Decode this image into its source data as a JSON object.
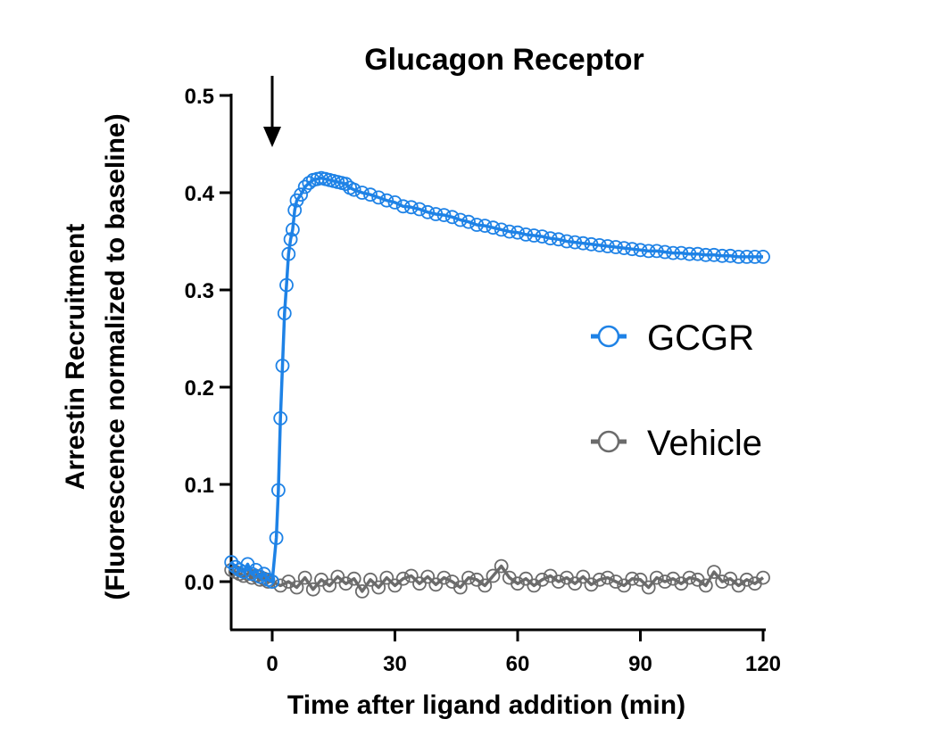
{
  "chart_data": {
    "type": "scatter",
    "title": "Glucagon Receptor",
    "xlabel": "Time after ligand addition (min)",
    "ylabel": "Arrestin Recruitment",
    "ylabel2": "(Fluorescence normalized to baseline)",
    "xlim": [
      -10,
      120
    ],
    "ylim": [
      -0.05,
      0.5
    ],
    "xticks": [
      0,
      30,
      60,
      90,
      120
    ],
    "yticks": [
      0.0,
      0.1,
      0.2,
      0.3,
      0.4,
      0.5
    ],
    "xtick_labels": [
      "0",
      "30",
      "60",
      "90",
      "120"
    ],
    "ytick_labels": [
      "0.0",
      "0.1",
      "0.2",
      "0.3",
      "0.4",
      "0.5"
    ],
    "annotation": {
      "type": "arrow",
      "x": 0,
      "direction": "down"
    },
    "legend_position": "right",
    "grid": false,
    "series": [
      {
        "name": "GCGR",
        "color": "#1e82e6",
        "marker": "open-circle",
        "points": [
          [
            -10,
            0.02
          ],
          [
            -9,
            0.015
          ],
          [
            -8,
            0.012
          ],
          [
            -7,
            0.01
          ],
          [
            -6,
            0.018
          ],
          [
            -5,
            0.008
          ],
          [
            -4,
            0.012
          ],
          [
            -3,
            0.005
          ],
          [
            -2,
            0.008
          ],
          [
            -1,
            0.002
          ],
          [
            0,
            0.0
          ],
          [
            1,
            0.045
          ],
          [
            1.5,
            0.094
          ],
          [
            2,
            0.168
          ],
          [
            2.5,
            0.222
          ],
          [
            3,
            0.276
          ],
          [
            3.5,
            0.305
          ],
          [
            4,
            0.337
          ],
          [
            4.5,
            0.352
          ],
          [
            5,
            0.362
          ],
          [
            5.5,
            0.382
          ],
          [
            6,
            0.392
          ],
          [
            7,
            0.398
          ],
          [
            8,
            0.406
          ],
          [
            9,
            0.41
          ],
          [
            10,
            0.413
          ],
          [
            11,
            0.414
          ],
          [
            12,
            0.415
          ],
          [
            13,
            0.414
          ],
          [
            14,
            0.413
          ],
          [
            15,
            0.412
          ],
          [
            16,
            0.411
          ],
          [
            17,
            0.41
          ],
          [
            18,
            0.409
          ],
          [
            19,
            0.405
          ],
          [
            20,
            0.403
          ],
          [
            22,
            0.4
          ],
          [
            24,
            0.398
          ],
          [
            26,
            0.395
          ],
          [
            28,
            0.392
          ],
          [
            30,
            0.39
          ],
          [
            32,
            0.386
          ],
          [
            34,
            0.385
          ],
          [
            36,
            0.383
          ],
          [
            38,
            0.38
          ],
          [
            40,
            0.378
          ],
          [
            42,
            0.377
          ],
          [
            44,
            0.375
          ],
          [
            46,
            0.372
          ],
          [
            48,
            0.37
          ],
          [
            50,
            0.367
          ],
          [
            52,
            0.366
          ],
          [
            54,
            0.364
          ],
          [
            56,
            0.362
          ],
          [
            58,
            0.36
          ],
          [
            60,
            0.359
          ],
          [
            62,
            0.357
          ],
          [
            64,
            0.356
          ],
          [
            66,
            0.355
          ],
          [
            68,
            0.353
          ],
          [
            70,
            0.352
          ],
          [
            72,
            0.35
          ],
          [
            74,
            0.349
          ],
          [
            76,
            0.348
          ],
          [
            78,
            0.347
          ],
          [
            80,
            0.346
          ],
          [
            82,
            0.345
          ],
          [
            84,
            0.344
          ],
          [
            86,
            0.343
          ],
          [
            88,
            0.342
          ],
          [
            90,
            0.341
          ],
          [
            92,
            0.34
          ],
          [
            94,
            0.34
          ],
          [
            96,
            0.339
          ],
          [
            98,
            0.338
          ],
          [
            100,
            0.338
          ],
          [
            102,
            0.337
          ],
          [
            104,
            0.337
          ],
          [
            106,
            0.336
          ],
          [
            108,
            0.336
          ],
          [
            110,
            0.335
          ],
          [
            112,
            0.335
          ],
          [
            114,
            0.334
          ],
          [
            116,
            0.334
          ],
          [
            118,
            0.334
          ],
          [
            120,
            0.334
          ]
        ]
      },
      {
        "name": "Vehicle",
        "color": "#6b6b6b",
        "marker": "open-circle",
        "points": [
          [
            -10,
            0.012
          ],
          [
            -9,
            0.01
          ],
          [
            -8,
            0.008
          ],
          [
            -7,
            0.006
          ],
          [
            -6,
            0.008
          ],
          [
            -5,
            0.004
          ],
          [
            -4,
            0.006
          ],
          [
            -3,
            0.002
          ],
          [
            -2,
            0.003
          ],
          [
            -1,
            0.0
          ],
          [
            0,
            0.0
          ],
          [
            2,
            -0.004
          ],
          [
            4,
            0.0
          ],
          [
            6,
            -0.006
          ],
          [
            8,
            0.004
          ],
          [
            10,
            -0.008
          ],
          [
            12,
            0.002
          ],
          [
            14,
            -0.004
          ],
          [
            16,
            0.005
          ],
          [
            18,
            -0.002
          ],
          [
            20,
            0.003
          ],
          [
            22,
            -0.01
          ],
          [
            24,
            0.002
          ],
          [
            26,
            -0.006
          ],
          [
            28,
            0.004
          ],
          [
            30,
            -0.004
          ],
          [
            32,
            0.003
          ],
          [
            34,
            0.006
          ],
          [
            36,
            -0.002
          ],
          [
            38,
            0.005
          ],
          [
            40,
            -0.003
          ],
          [
            42,
            0.004
          ],
          [
            44,
            0.0
          ],
          [
            46,
            -0.006
          ],
          [
            48,
            0.004
          ],
          [
            50,
            0.002
          ],
          [
            52,
            -0.004
          ],
          [
            54,
            0.006
          ],
          [
            56,
            0.016
          ],
          [
            58,
            0.004
          ],
          [
            60,
            -0.002
          ],
          [
            62,
            0.003
          ],
          [
            64,
            -0.004
          ],
          [
            66,
            0.002
          ],
          [
            68,
            0.006
          ],
          [
            70,
            0.0
          ],
          [
            72,
            0.004
          ],
          [
            74,
            -0.002
          ],
          [
            76,
            0.005
          ],
          [
            78,
            -0.003
          ],
          [
            80,
            0.002
          ],
          [
            82,
            0.004
          ],
          [
            84,
            0.0
          ],
          [
            86,
            -0.004
          ],
          [
            88,
            0.003
          ],
          [
            90,
            0.002
          ],
          [
            92,
            -0.006
          ],
          [
            94,
            0.004
          ],
          [
            96,
            0.0
          ],
          [
            98,
            0.003
          ],
          [
            100,
            -0.002
          ],
          [
            102,
            0.004
          ],
          [
            104,
            0.002
          ],
          [
            106,
            -0.004
          ],
          [
            108,
            0.01
          ],
          [
            110,
            0.0
          ],
          [
            112,
            0.003
          ],
          [
            114,
            -0.004
          ],
          [
            116,
            0.002
          ],
          [
            118,
            -0.002
          ],
          [
            120,
            0.004
          ]
        ]
      }
    ]
  }
}
